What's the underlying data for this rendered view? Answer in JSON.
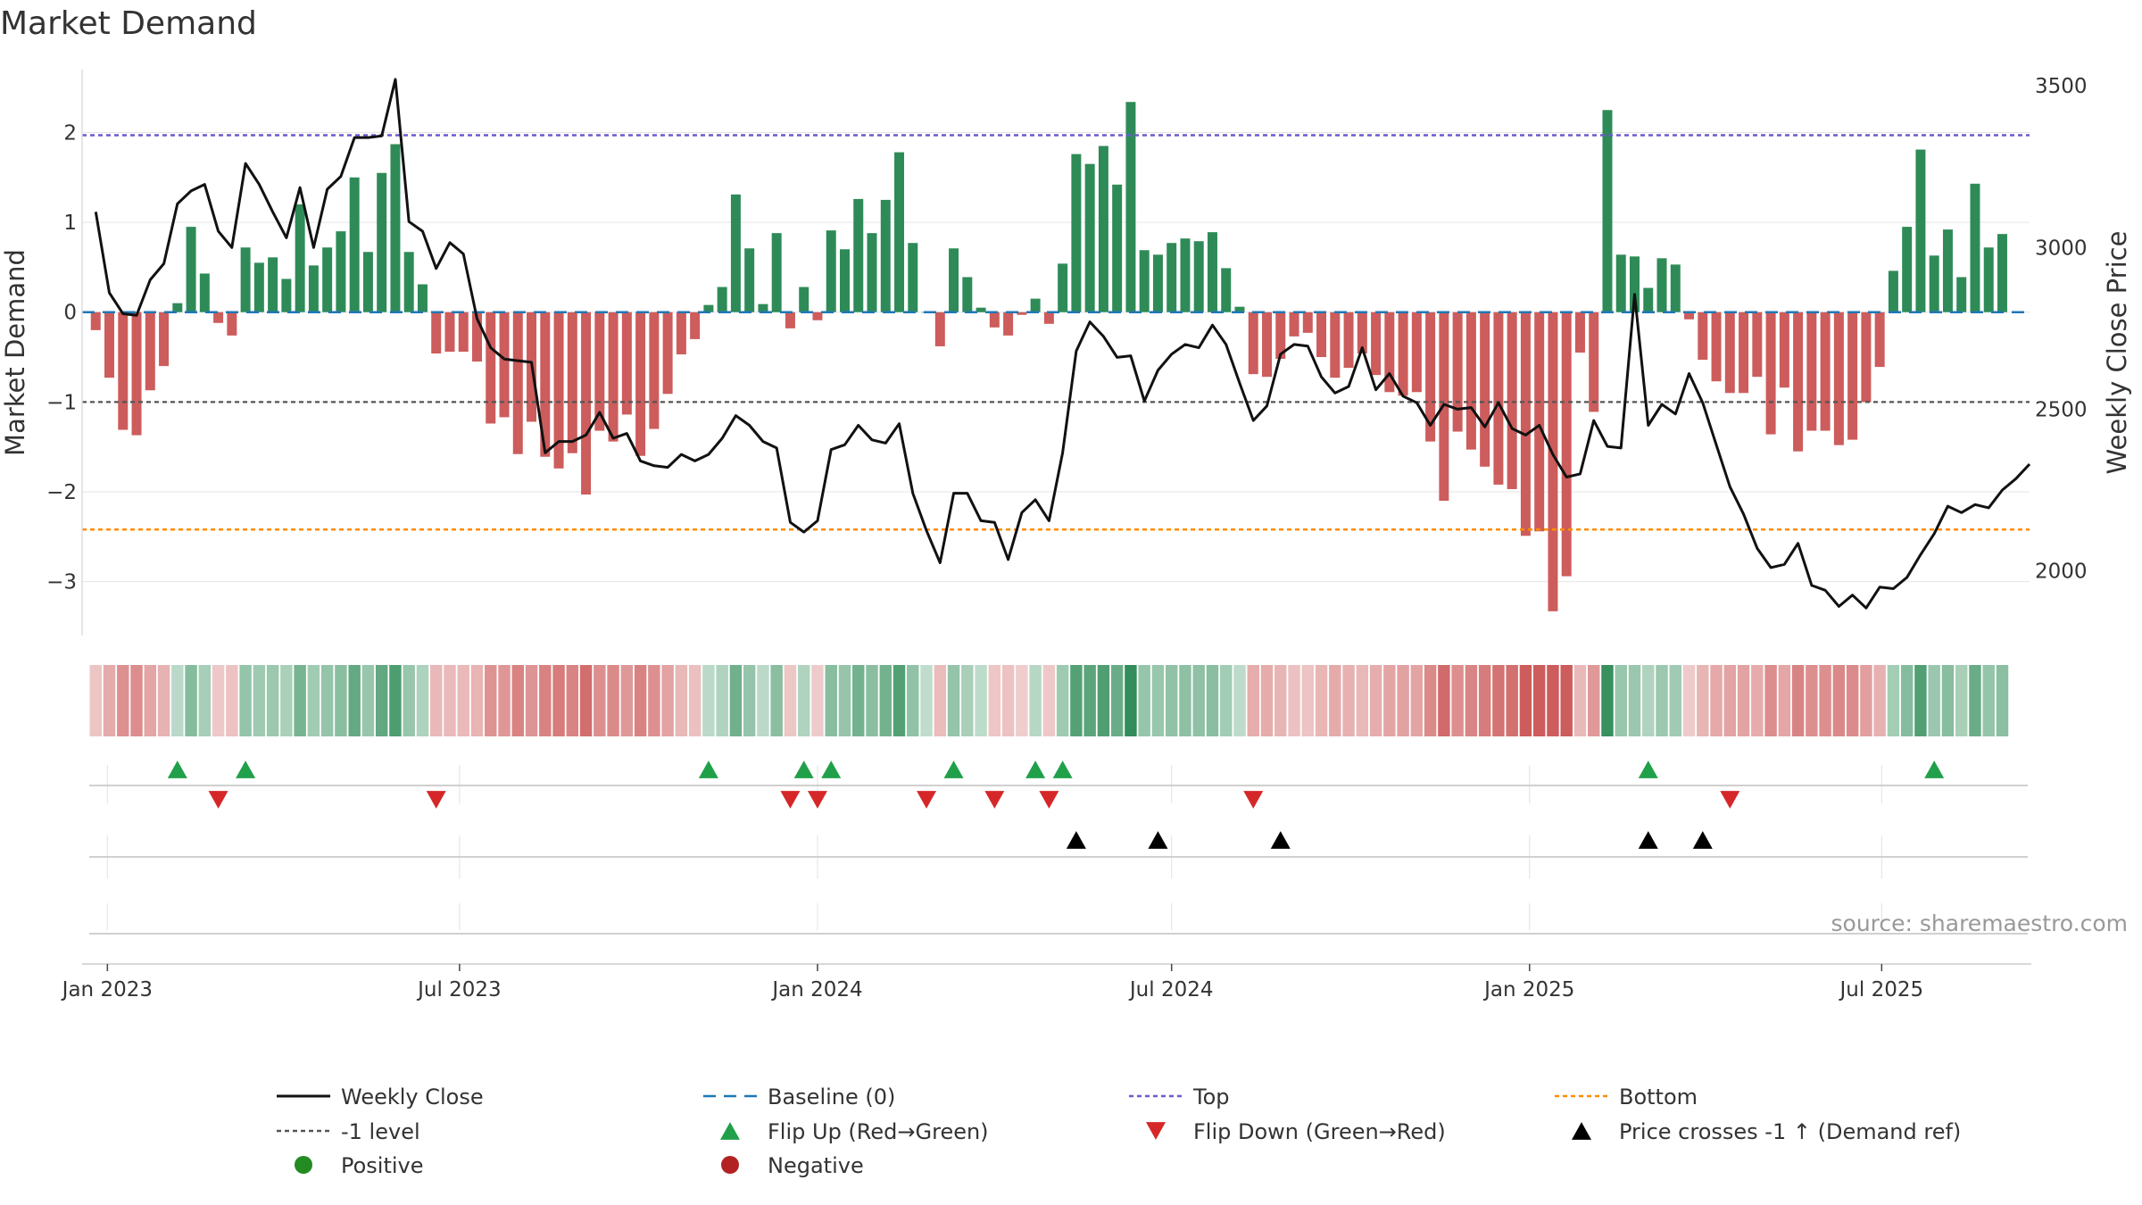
{
  "chart_data": {
    "type": "bar",
    "title": "Market Demand",
    "ylabel_left": "Market Demand",
    "ylabel_right": "Weekly Close Price",
    "source": "source: sharemaestro.com",
    "xlim": [
      "2022-12-19",
      "2025-09-15"
    ],
    "ylim_left": [
      -3.6,
      2.7
    ],
    "ylim_right": [
      1800,
      3550
    ],
    "yticks_left": [
      {
        "v": 2,
        "label": "2"
      },
      {
        "v": 1,
        "label": "1"
      },
      {
        "v": 0,
        "label": "0"
      },
      {
        "v": -1,
        "label": "−1"
      },
      {
        "v": -2,
        "label": "−2"
      },
      {
        "v": -3,
        "label": "−3"
      }
    ],
    "yticks_right": [
      {
        "v": 3500,
        "label": "3500"
      },
      {
        "v": 3000,
        "label": "3000"
      },
      {
        "v": 2500,
        "label": "2500"
      },
      {
        "v": 2000,
        "label": "2000"
      }
    ],
    "xticks": [
      {
        "date": "2023-01-01",
        "label": "Jan 2023"
      },
      {
        "date": "2023-07-01",
        "label": "Jul 2023"
      },
      {
        "date": "2024-01-01",
        "label": "Jan 2024"
      },
      {
        "date": "2024-07-01",
        "label": "Jul 2024"
      },
      {
        "date": "2025-01-01",
        "label": "Jan 2025"
      },
      {
        "date": "2025-07-01",
        "label": "Jul 2025"
      }
    ],
    "start_week": "2022-12-26",
    "reference_lines": {
      "baseline": 0,
      "top": 1.97,
      "bottom": -2.42,
      "minus_one": -1
    },
    "demand": [
      -0.2,
      -0.73,
      -1.31,
      -1.37,
      -0.87,
      -0.6,
      0.1,
      0.95,
      0.43,
      -0.12,
      -0.26,
      0.72,
      0.55,
      0.61,
      0.37,
      1.2,
      0.52,
      0.72,
      0.9,
      1.5,
      0.67,
      1.55,
      1.87,
      0.67,
      0.31,
      -0.46,
      -0.44,
      -0.44,
      -0.55,
      -1.24,
      -1.17,
      -1.58,
      -1.22,
      -1.61,
      -1.74,
      -1.57,
      -2.03,
      -1.32,
      -1.44,
      -1.14,
      -1.6,
      -1.3,
      -0.91,
      -0.47,
      -0.3,
      0.08,
      0.28,
      1.31,
      0.71,
      0.09,
      0.88,
      -0.18,
      0.28,
      -0.09,
      0.91,
      0.7,
      1.26,
      0.88,
      1.25,
      1.78,
      0.77,
      0.0,
      -0.38,
      0.71,
      0.39,
      0.05,
      -0.17,
      -0.26,
      -0.03,
      0.15,
      -0.13,
      0.54,
      1.76,
      1.65,
      1.85,
      1.42,
      2.34,
      0.69,
      0.64,
      0.77,
      0.82,
      0.79,
      0.89,
      0.49,
      0.06,
      -0.69,
      -0.72,
      -0.52,
      -0.27,
      -0.23,
      -0.5,
      -0.73,
      -0.62,
      -0.46,
      -0.7,
      -0.89,
      -0.93,
      -0.89,
      -1.44,
      -2.1,
      -1.33,
      -1.53,
      -1.72,
      -1.92,
      -1.97,
      -2.49,
      -2.44,
      -3.33,
      -2.94,
      -0.45,
      -1.11,
      2.25,
      0.64,
      0.62,
      0.27,
      0.6,
      0.53,
      -0.08,
      -0.53,
      -0.77,
      -0.9,
      -0.9,
      -0.72,
      -1.36,
      -0.84,
      -1.55,
      -1.32,
      -1.32,
      -1.48,
      -1.42,
      -1.0,
      -0.61,
      0.46,
      0.95,
      1.81,
      0.63,
      0.92,
      0.39,
      1.43,
      0.72,
      0.87
    ],
    "weekly_close": [
      3110,
      2860,
      2795,
      2790,
      2900,
      2950,
      3135,
      3175,
      3195,
      3050,
      3000,
      3260,
      3195,
      3110,
      3030,
      3185,
      3000,
      3180,
      3220,
      3340,
      3340,
      3345,
      3520,
      3080,
      3050,
      2935,
      3015,
      2980,
      2780,
      2690,
      2655,
      2650,
      2645,
      2365,
      2400,
      2400,
      2420,
      2490,
      2410,
      2425,
      2340,
      2325,
      2320,
      2360,
      2340,
      2360,
      2410,
      2480,
      2450,
      2400,
      2380,
      2150,
      2120,
      2155,
      2375,
      2390,
      2450,
      2405,
      2395,
      2455,
      2240,
      2125,
      2025,
      2240,
      2240,
      2155,
      2150,
      2035,
      2180,
      2220,
      2155,
      2365,
      2680,
      2770,
      2725,
      2660,
      2665,
      2525,
      2620,
      2670,
      2700,
      2690,
      2760,
      2700,
      2580,
      2465,
      2510,
      2670,
      2700,
      2695,
      2600,
      2550,
      2570,
      2690,
      2560,
      2610,
      2540,
      2520,
      2450,
      2515,
      2500,
      2505,
      2445,
      2520,
      2440,
      2420,
      2450,
      2360,
      2290,
      2300,
      2465,
      2385,
      2380,
      2855,
      2450,
      2515,
      2485,
      2610,
      2520,
      2390,
      2260,
      2175,
      2070,
      2010,
      2020,
      2085,
      1955,
      1940,
      1890,
      1925,
      1885,
      1950,
      1945,
      1980,
      2050,
      2115,
      2200,
      2180,
      2205,
      2195,
      2250,
      2285,
      2330
    ],
    "flip_up_weeks": [
      6,
      11,
      45,
      52,
      54,
      63,
      69,
      71,
      114,
      135
    ],
    "flip_down_weeks": [
      9,
      25,
      51,
      53,
      61,
      66,
      70,
      85,
      120
    ],
    "price_cross_weeks": [
      72,
      78,
      87,
      114,
      118
    ],
    "colors": {
      "positive": "#2e8b57",
      "negative": "#cd5c5c",
      "line": "#111111",
      "baseline": "#1f77b4",
      "top": "#6a5acd",
      "bottom": "#ff8c00",
      "minus_one": "#555555",
      "flip_up": "#21a04a",
      "flip_down": "#d62728",
      "cross": "#000000",
      "legend_positive": "#228b22",
      "legend_negative": "#b22222",
      "grid": "#e6e6e6"
    },
    "legend": [
      {
        "label": "Weekly Close",
        "kind": "line"
      },
      {
        "label": "Baseline (0)",
        "kind": "baseline"
      },
      {
        "label": "Top",
        "kind": "top"
      },
      {
        "label": "Bottom",
        "kind": "bottom"
      },
      {
        "label": "-1 level",
        "kind": "minus_one"
      },
      {
        "label": "Flip Up (Red→Green)",
        "kind": "flip_up"
      },
      {
        "label": "Flip Down (Green→Red)",
        "kind": "flip_down"
      },
      {
        "label": "Price crosses -1 ↑ (Demand ref)",
        "kind": "cross"
      },
      {
        "label": "Positive",
        "kind": "positive"
      },
      {
        "label": "Negative",
        "kind": "negative"
      }
    ]
  }
}
